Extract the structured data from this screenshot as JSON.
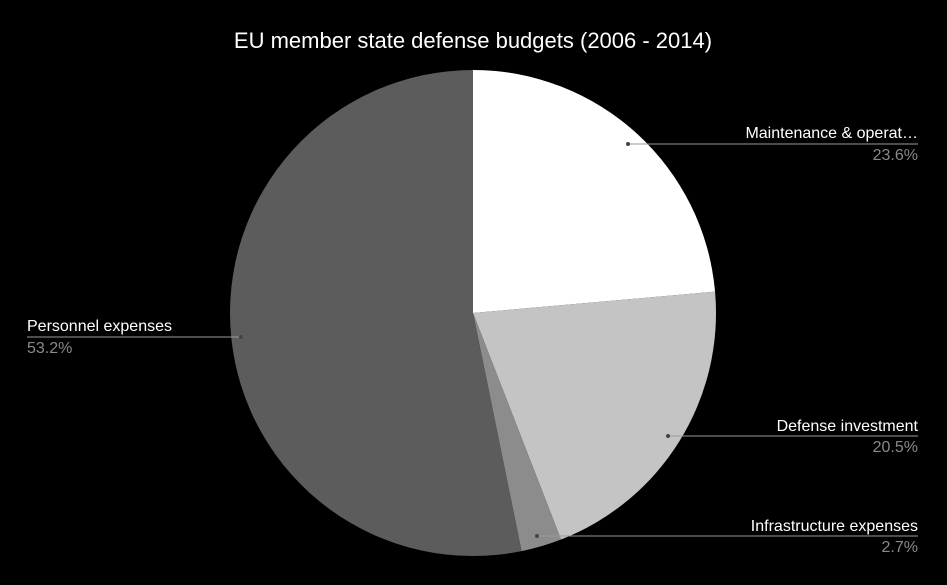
{
  "chart_data": {
    "type": "pie",
    "title": "EU member state defense budgets (2006 - 2014)",
    "start_angle_deg": 0,
    "direction": "clockwise",
    "slices": [
      {
        "label": "Maintenance & operat…",
        "value": 23.6,
        "percent_label": "23.6%",
        "color": "#ffffff"
      },
      {
        "label": "Defense investment",
        "value": 20.5,
        "percent_label": "20.5%",
        "color": "#c4c4c4"
      },
      {
        "label": "Infrastructure expenses",
        "value": 2.7,
        "percent_label": "2.7%",
        "color": "#8c8c8c"
      },
      {
        "label": "Personnel expenses",
        "value": 53.2,
        "percent_label": "53.2%",
        "color": "#5c5c5c"
      }
    ]
  }
}
